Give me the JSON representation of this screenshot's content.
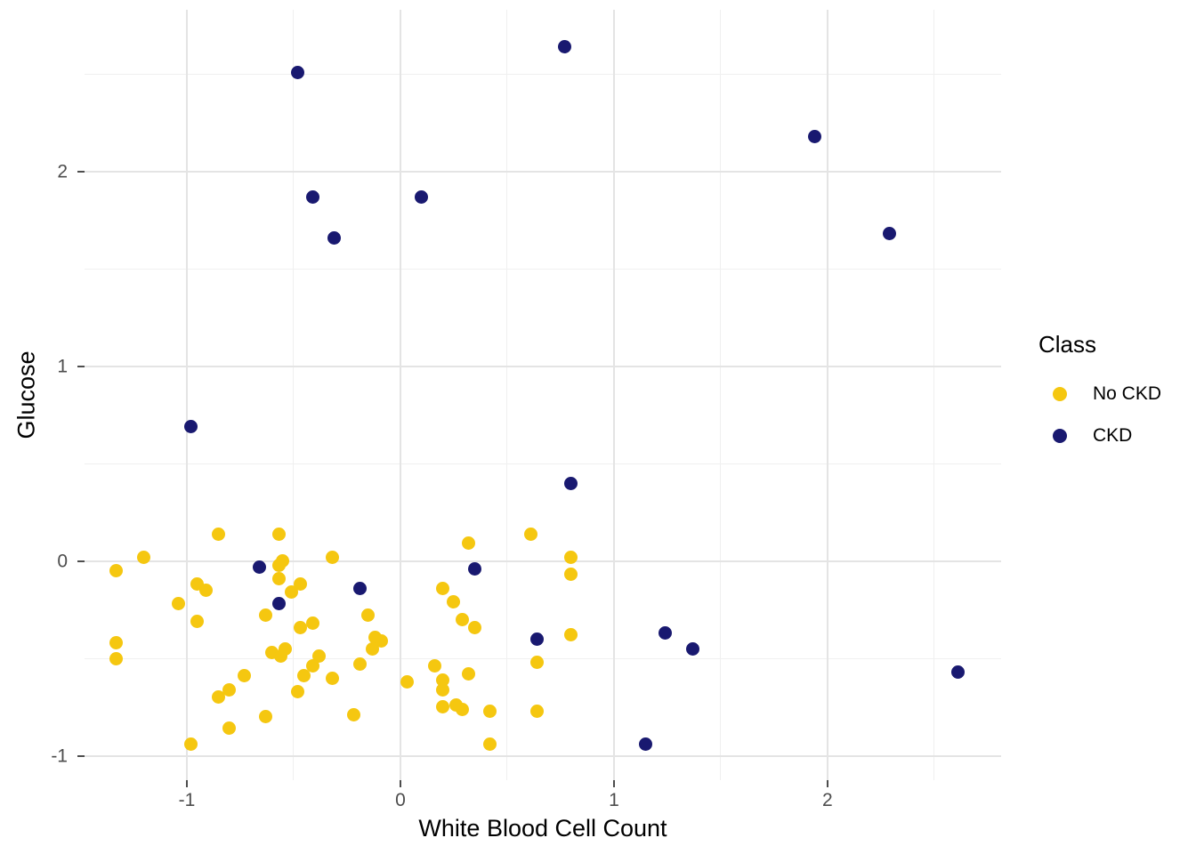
{
  "figure": {
    "background": "#ffffff",
    "grid_major_color": "#e4e4e4",
    "grid_minor_color": "#f0f0f0",
    "tick_color": "#4d4d4d",
    "tick_label_color": "#4d4d4d"
  },
  "axes": {
    "x": {
      "title": "White Blood Cell Count",
      "tick_labels": [
        "-1",
        "0",
        "1",
        "2"
      ],
      "tick_values": [
        -1,
        0,
        1,
        2
      ],
      "minor_ticks": [
        -0.5,
        0.5,
        1.5,
        2.5
      ]
    },
    "y": {
      "title": "Glucose",
      "tick_labels": [
        "-1",
        "0",
        "1",
        "2"
      ],
      "tick_values": [
        -1,
        0,
        1,
        2
      ],
      "minor_ticks": [
        -0.5,
        0.5,
        1.5,
        2.5
      ]
    }
  },
  "legend": {
    "title": "Class",
    "items": [
      {
        "label": "No CKD",
        "color": "#F5C710"
      },
      {
        "label": "CKD",
        "color": "#191970"
      }
    ]
  },
  "chart_data": {
    "type": "scatter",
    "title": "",
    "xlabel": "White Blood Cell Count",
    "ylabel": "Glucose",
    "xlim": [
      -1.479,
      2.813
    ],
    "ylim": [
      -1.125,
      2.83
    ],
    "grid": true,
    "legend_position": "right",
    "legend_title": "Class",
    "series": [
      {
        "name": "No CKD",
        "color": "#F5C710",
        "points": [
          [
            -0.85,
            0.14
          ],
          [
            -0.57,
            0.14
          ],
          [
            -1.2,
            0.02
          ],
          [
            -1.33,
            -0.05
          ],
          [
            -0.57,
            -0.02
          ],
          [
            -0.55,
            0.0
          ],
          [
            -0.32,
            0.02
          ],
          [
            -0.57,
            -0.09
          ],
          [
            -0.47,
            -0.12
          ],
          [
            -0.95,
            -0.12
          ],
          [
            -0.91,
            -0.15
          ],
          [
            -0.51,
            -0.16
          ],
          [
            -1.04,
            -0.22
          ],
          [
            -0.63,
            -0.28
          ],
          [
            -0.95,
            -0.31
          ],
          [
            -0.47,
            -0.34
          ],
          [
            -0.41,
            -0.32
          ],
          [
            0.32,
            0.09
          ],
          [
            0.61,
            0.14
          ],
          [
            0.8,
            0.02
          ],
          [
            0.8,
            -0.07
          ],
          [
            0.2,
            -0.14
          ],
          [
            0.25,
            -0.21
          ],
          [
            -0.15,
            -0.28
          ],
          [
            0.29,
            -0.3
          ],
          [
            0.35,
            -0.34
          ],
          [
            0.8,
            -0.38
          ],
          [
            -1.33,
            -0.42
          ],
          [
            -1.33,
            -0.5
          ],
          [
            -0.6,
            -0.47
          ],
          [
            -0.56,
            -0.49
          ],
          [
            -0.54,
            -0.45
          ],
          [
            -0.73,
            -0.59
          ],
          [
            -0.8,
            -0.66
          ],
          [
            -0.85,
            -0.7
          ],
          [
            -0.38,
            -0.49
          ],
          [
            -0.41,
            -0.54
          ],
          [
            -0.45,
            -0.59
          ],
          [
            -0.32,
            -0.6
          ],
          [
            -0.48,
            -0.67
          ],
          [
            -0.63,
            -0.8
          ],
          [
            -0.8,
            -0.86
          ],
          [
            -0.98,
            -0.94
          ],
          [
            -0.12,
            -0.39
          ],
          [
            -0.09,
            -0.41
          ],
          [
            -0.13,
            -0.45
          ],
          [
            -0.19,
            -0.53
          ],
          [
            0.16,
            -0.54
          ],
          [
            0.03,
            -0.62
          ],
          [
            0.2,
            -0.61
          ],
          [
            0.2,
            -0.66
          ],
          [
            0.32,
            -0.58
          ],
          [
            0.2,
            -0.75
          ],
          [
            0.26,
            -0.74
          ],
          [
            0.29,
            -0.76
          ],
          [
            0.42,
            -0.77
          ],
          [
            -0.22,
            -0.79
          ],
          [
            0.64,
            -0.52
          ],
          [
            0.64,
            -0.77
          ],
          [
            0.42,
            -0.94
          ]
        ]
      },
      {
        "name": "CKD",
        "color": "#191970",
        "points": [
          [
            -0.48,
            2.51
          ],
          [
            0.77,
            2.64
          ],
          [
            -0.41,
            1.87
          ],
          [
            0.1,
            1.87
          ],
          [
            -0.31,
            1.66
          ],
          [
            1.94,
            2.18
          ],
          [
            2.29,
            1.68
          ],
          [
            -0.98,
            0.69
          ],
          [
            0.8,
            0.4
          ],
          [
            -0.66,
            -0.03
          ],
          [
            -0.57,
            -0.22
          ],
          [
            0.35,
            -0.04
          ],
          [
            -0.19,
            -0.14
          ],
          [
            0.64,
            -0.4
          ],
          [
            1.24,
            -0.37
          ],
          [
            1.37,
            -0.45
          ],
          [
            2.61,
            -0.57
          ],
          [
            1.15,
            -0.94
          ]
        ]
      }
    ]
  }
}
